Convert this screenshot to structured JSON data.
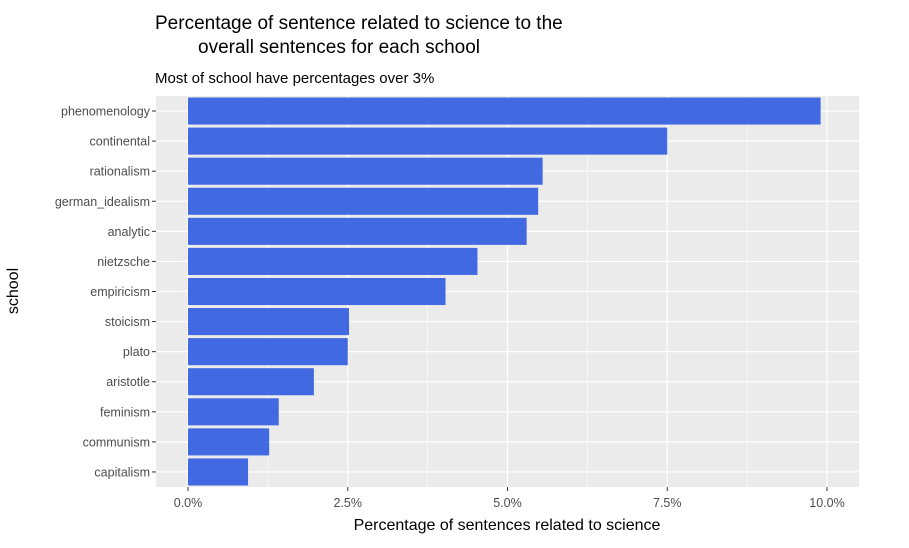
{
  "chart_data": {
    "type": "bar",
    "orientation": "horizontal",
    "title_lines": [
      "Percentage of sentence related to science to the",
      "overall sentences for each school"
    ],
    "subtitle": "Most of school have percentages over 3%",
    "xlabel": "Percentage of sentences related to science",
    "ylabel": "school",
    "xlim": [
      0,
      10
    ],
    "x_ticks": [
      {
        "value": 0,
        "label": "0.0%"
      },
      {
        "value": 2.5,
        "label": "2.5%"
      },
      {
        "value": 5,
        "label": "5.0%"
      },
      {
        "value": 7.5,
        "label": "7.5%"
      },
      {
        "value": 10,
        "label": "10.0%"
      }
    ],
    "categories": [
      "phenomenology",
      "continental",
      "rationalism",
      "german_idealism",
      "analytic",
      "nietzsche",
      "empiricism",
      "stoicism",
      "plato",
      "aristotle",
      "feminism",
      "communism",
      "capitalism"
    ],
    "values": [
      9.9,
      7.5,
      5.55,
      5.48,
      5.3,
      4.53,
      4.03,
      2.52,
      2.5,
      1.97,
      1.42,
      1.27,
      0.94
    ],
    "bar_color": "#4169E1",
    "panel_color": "#EBEBEB",
    "grid": true,
    "legend": "none"
  }
}
